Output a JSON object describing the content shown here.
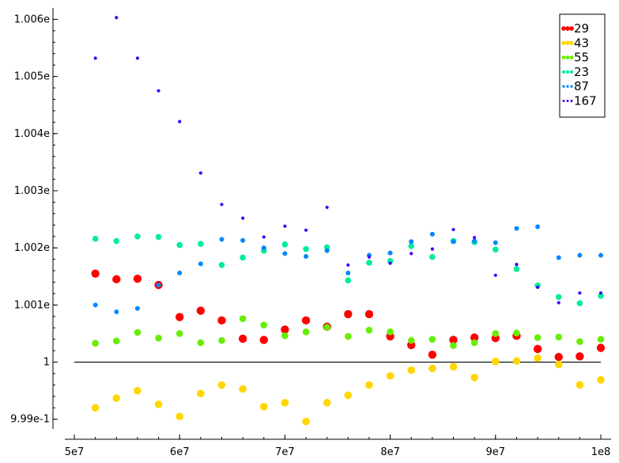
{
  "chart_data": {
    "type": "scatter",
    "title": "",
    "xlabel": "",
    "ylabel": "",
    "xlim": [
      50000000,
      100000000
    ],
    "ylim": [
      0.99883,
      1.0062
    ],
    "grid": false,
    "legend_position": "top-right",
    "x_ticks": [
      {
        "value": 50000000,
        "label": "5e7"
      },
      {
        "value": 60000000,
        "label": "6e7"
      },
      {
        "value": 70000000,
        "label": "7e7"
      },
      {
        "value": 80000000,
        "label": "8e7"
      },
      {
        "value": 90000000,
        "label": "9e7"
      },
      {
        "value": 100000000,
        "label": "1e8"
      }
    ],
    "y_ticks": [
      {
        "value": 0.999,
        "label": "9.99e-1"
      },
      {
        "value": 1.0,
        "label": "1"
      },
      {
        "value": 1.001,
        "label": "1.001e"
      },
      {
        "value": 1.002,
        "label": "1.002e"
      },
      {
        "value": 1.003,
        "label": "1.003e"
      },
      {
        "value": 1.004,
        "label": "1.004e"
      },
      {
        "value": 1.005,
        "label": "1.005e"
      },
      {
        "value": 1.006,
        "label": "1.006e"
      }
    ],
    "reference_line": {
      "y": 1.0,
      "x_from": 50000000,
      "x_to": 100000000,
      "color": "#000000"
    },
    "x": [
      52000000,
      54000000,
      56000000,
      58000000,
      60000000,
      62000000,
      64000000,
      66000000,
      68000000,
      70000000,
      72000000,
      74000000,
      76000000,
      78000000,
      80000000,
      82000000,
      84000000,
      86000000,
      88000000,
      90000000,
      92000000,
      94000000,
      96000000,
      98000000,
      100000000
    ],
    "series": [
      {
        "name": "29",
        "color": "#ff0000",
        "size": 5.2,
        "values": [
          1.00155,
          1.00145,
          1.00146,
          1.00135,
          1.00079,
          1.0009,
          1.00073,
          1.00041,
          1.00039,
          1.00057,
          1.00073,
          1.00062,
          1.00084,
          1.00084,
          1.00045,
          1.0003,
          1.00013,
          1.00039,
          1.00043,
          1.00042,
          1.00046,
          1.00023,
          1.00009,
          1.0001,
          1.00025
        ]
      },
      {
        "name": "43",
        "color": "#ffd700",
        "size": 4.8,
        "values": [
          0.9992,
          0.99937,
          0.9995,
          0.99926,
          0.99905,
          0.99945,
          0.9996,
          0.99953,
          0.99922,
          0.99929,
          0.99896,
          0.99929,
          0.99942,
          0.9996,
          0.99976,
          0.99986,
          0.99989,
          0.99992,
          0.99973,
          1.00001,
          1.00002,
          1.00007,
          0.99996,
          0.9996,
          0.99969
        ]
      },
      {
        "name": "55",
        "color": "#66ee00",
        "size": 4.3,
        "values": [
          1.00033,
          1.00037,
          1.00052,
          1.00042,
          1.0005,
          1.00034,
          1.00038,
          1.00076,
          1.00065,
          1.00046,
          1.00053,
          1.00061,
          1.00045,
          1.00056,
          1.00053,
          1.00038,
          1.0004,
          1.00029,
          1.00034,
          1.0005,
          1.00051,
          1.00043,
          1.00044,
          1.00036,
          1.0004
        ]
      },
      {
        "name": "23",
        "color": "#00ee99",
        "size": 3.8,
        "values": [
          1.00216,
          1.00212,
          1.0022,
          1.00219,
          1.00205,
          1.00207,
          1.0017,
          1.00183,
          1.00195,
          1.00206,
          1.00198,
          1.00201,
          1.00143,
          1.00174,
          1.00177,
          1.00203,
          1.00184,
          1.00212,
          1.0021,
          1.00197,
          1.00163,
          1.00134,
          1.00114,
          1.00103,
          1.00116
        ]
      },
      {
        "name": "87",
        "color": "#0088ff",
        "size": 3.0,
        "values": [
          1.001,
          1.00088,
          1.00094,
          1.00135,
          1.00156,
          1.00172,
          1.00215,
          1.00213,
          1.002,
          1.0019,
          1.00185,
          1.00195,
          1.00156,
          1.00187,
          1.00191,
          1.00211,
          1.00224,
          1.00211,
          1.00212,
          1.00209,
          1.00234,
          1.00237,
          1.00183,
          1.00187,
          1.00187
        ]
      },
      {
        "name": "167",
        "color": "#4400ff",
        "size": 2.1,
        "values": [
          1.00532,
          1.00603,
          1.00532,
          1.00475,
          1.00421,
          1.00331,
          1.00276,
          1.00252,
          1.00219,
          1.00238,
          1.00231,
          1.00271,
          1.0017,
          1.00184,
          1.00173,
          1.0019,
          1.00198,
          1.00232,
          1.00218,
          1.00152,
          1.00171,
          1.00131,
          1.00104,
          1.00121,
          1.00121
        ]
      }
    ]
  }
}
